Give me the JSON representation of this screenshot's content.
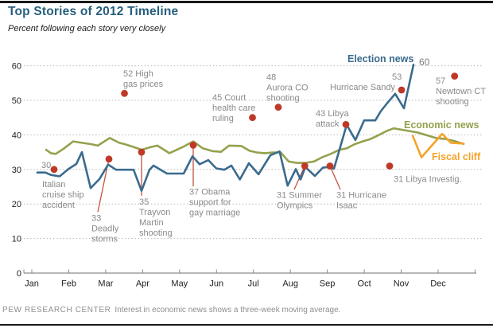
{
  "page": {
    "title": "Top Stories of 2012 Timeline",
    "subtitle": "Percent following each story very closely",
    "footer_brand": "PEW RESEARCH CENTER",
    "footer_note": "Interest in economic news shows a three-week moving average."
  },
  "colors": {
    "election": "#3A6B8E",
    "economic": "#95A14E",
    "fiscal": "#F5A329",
    "event_dot": "#BF3927",
    "connector": "#C4523E",
    "annotation": "#8A8A8A",
    "grid": "#B8B8B8",
    "axis": "#8A8A8A",
    "endpoint": "#7d7d7d"
  },
  "chart_data": {
    "type": "line",
    "title": "Top Stories of 2012 Timeline",
    "ylabel": "Percent following each story very closely",
    "x_unit": "months since Jan 1 2012 (0 = Jan, 11 = Dec)",
    "xlim": [
      0,
      12
    ],
    "ylim": [
      0,
      65
    ],
    "yticks": [
      0,
      10,
      20,
      30,
      40,
      50,
      60
    ],
    "xticklabels": [
      "Jan",
      "Feb",
      "Mar",
      "Apr",
      "May",
      "Jun",
      "Jul",
      "Aug",
      "Sep",
      "Oct",
      "Nov",
      "Dec"
    ],
    "grid": "dotted horizontal",
    "legend_position": "inline labels on lines",
    "series": [
      {
        "id": "election",
        "name": "Election news",
        "color": "#3A6B8E",
        "points": [
          [
            0.365,
            29.1
          ],
          [
            0.58,
            29.1
          ],
          [
            0.731,
            28.4
          ],
          [
            0.967,
            28.0
          ],
          [
            1.203,
            30.1
          ],
          [
            1.418,
            31.6
          ],
          [
            1.569,
            35.0
          ],
          [
            1.805,
            24.6
          ],
          [
            2.041,
            27.2
          ],
          [
            2.278,
            31.4
          ],
          [
            2.493,
            29.9
          ],
          [
            2.729,
            29.9
          ],
          [
            2.966,
            29.9
          ],
          [
            3.18,
            23.8
          ],
          [
            3.395,
            29.9
          ],
          [
            3.503,
            31.1
          ],
          [
            3.632,
            30.3
          ],
          [
            3.868,
            28.8
          ],
          [
            4.104,
            28.8
          ],
          [
            4.319,
            28.8
          ],
          [
            4.556,
            33.8
          ],
          [
            4.749,
            31.5
          ],
          [
            4.985,
            32.7
          ],
          [
            5.2,
            30.3
          ],
          [
            5.415,
            29.9
          ],
          [
            5.608,
            31.1
          ],
          [
            5.838,
            27.1
          ],
          [
            6.08,
            31.8
          ],
          [
            6.34,
            28.6
          ],
          [
            6.66,
            34.1
          ],
          [
            6.91,
            35.2
          ],
          [
            7.128,
            25.3
          ],
          [
            7.349,
            30.1
          ],
          [
            7.478,
            27.1
          ],
          [
            7.607,
            30.7
          ],
          [
            7.864,
            28.1
          ],
          [
            8.079,
            30.5
          ],
          [
            8.23,
            30.7
          ],
          [
            8.38,
            30.2
          ],
          [
            8.724,
            42.9
          ],
          [
            8.96,
            38.5
          ],
          [
            9.197,
            44.2
          ],
          [
            9.497,
            44.2
          ],
          [
            9.648,
            46.9
          ],
          [
            9.82,
            49.2
          ],
          [
            10.035,
            51.9
          ],
          [
            10.271,
            47.7
          ],
          [
            10.529,
            60.3
          ]
        ]
      },
      {
        "id": "economic",
        "name": "Economic news",
        "color": "#95A14E",
        "points": [
          [
            0.602,
            35.7
          ],
          [
            0.731,
            34.7
          ],
          [
            0.86,
            34.5
          ],
          [
            1.074,
            36.0
          ],
          [
            1.332,
            38.1
          ],
          [
            1.569,
            37.7
          ],
          [
            1.826,
            37.3
          ],
          [
            1.998,
            36.9
          ],
          [
            2.321,
            39.1
          ],
          [
            2.578,
            37.7
          ],
          [
            2.729,
            37.3
          ],
          [
            2.966,
            36.5
          ],
          [
            3.18,
            35.7
          ],
          [
            3.438,
            36.5
          ],
          [
            3.61,
            36.9
          ],
          [
            3.932,
            34.7
          ],
          [
            4.298,
            36.5
          ],
          [
            4.577,
            38.1
          ],
          [
            4.835,
            36.1
          ],
          [
            5.093,
            35.3
          ],
          [
            5.329,
            35.1
          ],
          [
            5.544,
            36.9
          ],
          [
            5.87,
            36.8
          ],
          [
            6.1,
            35.4
          ],
          [
            6.296,
            34.9
          ],
          [
            6.511,
            34.7
          ],
          [
            6.726,
            34.9
          ],
          [
            6.941,
            34.9
          ],
          [
            7.156,
            32.3
          ],
          [
            7.37,
            31.9
          ],
          [
            7.607,
            31.9
          ],
          [
            7.843,
            32.3
          ],
          [
            8.058,
            33.5
          ],
          [
            8.294,
            34.5
          ],
          [
            8.531,
            35.7
          ],
          [
            8.724,
            36.1
          ],
          [
            8.939,
            37.3
          ],
          [
            9.154,
            38.1
          ],
          [
            9.368,
            38.8
          ],
          [
            9.583,
            39.9
          ],
          [
            9.798,
            41.1
          ],
          [
            9.991,
            41.9
          ],
          [
            10.206,
            41.5
          ],
          [
            10.421,
            41.1
          ],
          [
            10.636,
            40.7
          ],
          [
            10.916,
            39.8
          ],
          [
            11.131,
            39.1
          ],
          [
            11.389,
            38.8
          ],
          [
            11.604,
            38.3
          ],
          [
            11.883,
            37.4
          ]
        ]
      },
      {
        "id": "fiscal",
        "name": "Fiscal cliff",
        "color": "#F5A329",
        "points": [
          [
            10.507,
            39.8
          ],
          [
            10.744,
            33.5
          ],
          [
            11.302,
            40.3
          ],
          [
            11.539,
            37.7
          ],
          [
            11.883,
            37.5
          ]
        ]
      }
    ],
    "series_labels": {
      "election": {
        "text": "Election news",
        "m": 8.745,
        "v": 63.6
      },
      "election_endpoint": {
        "text": "60",
        "m": 10.679,
        "v": 62.7
      },
      "economic": {
        "text": "Economic news",
        "m": 10.271,
        "v": 44.5
      },
      "fiscal": {
        "text": "Fiscal cliff",
        "m": 11.023,
        "v": 35.3
      }
    },
    "events": [
      {
        "story": "Italian cruise ship accident",
        "value": 30,
        "dot": {
          "m": 0.817,
          "v": 30
        },
        "labels": [
          {
            "m": 0.473,
            "v": 32.7,
            "lines": [
              "30"
            ]
          },
          {
            "m": 0.494,
            "v": 27.2,
            "lines": [
              "Italian",
              "cruise ship",
              "accident"
            ]
          }
        ]
      },
      {
        "story": "Deadly storms",
        "value": 33,
        "dot": {
          "m": 2.299,
          "v": 33
        },
        "labels": [
          {
            "m": 1.826,
            "v": 17.3,
            "lines": [
              "33",
              "Deadly",
              "storms"
            ]
          }
        ],
        "connector": {
          "m": 1.998,
          "v": 17.7
        }
      },
      {
        "story": "High gas prices",
        "value": 52,
        "dot": {
          "m": 2.718,
          "v": 52
        },
        "labels": [
          {
            "m": 2.686,
            "v": 59.2,
            "lines": [
              "52 High",
              "gas prices"
            ]
          }
        ]
      },
      {
        "story": "Trayvon Martin shooting",
        "value": 35,
        "dot": {
          "m": 3.18,
          "v": 35
        },
        "labels": [
          {
            "m": 3.116,
            "v": 22.1,
            "lines": [
              "35",
              "Trayvon",
              "Martin",
              "shooting"
            ]
          }
        ],
        "connector": {
          "m": 3.18,
          "v": 22.4
        }
      },
      {
        "story": "Obama support for gay marriage",
        "value": 37,
        "dot": {
          "m": 4.577,
          "v": 37
        },
        "labels": [
          {
            "m": 4.47,
            "v": 24.9,
            "lines": [
              "37 Obama",
              "support for",
              "gay marriage"
            ]
          }
        ],
        "connector": {
          "m": 4.577,
          "v": 25.1
        }
      },
      {
        "story": "Court health care ruling",
        "value": 45,
        "dot": {
          "m": 6.178,
          "v": 45
        },
        "labels": [
          {
            "m": 5.093,
            "v": 52.3,
            "lines": [
              "45 Court",
              "health care",
              "ruling"
            ]
          }
        ]
      },
      {
        "story": "Aurora CO shooting",
        "value": 48,
        "dot": {
          "m": 6.876,
          "v": 48
        },
        "labels": [
          {
            "m": 6.554,
            "v": 58.1,
            "lines": [
              "48",
              "Aurora CO",
              "shooting"
            ]
          }
        ]
      },
      {
        "story": "Summer Olympics",
        "value": 31,
        "dot": {
          "m": 7.592,
          "v": 31
        },
        "labels": [
          {
            "m": 6.833,
            "v": 24.0,
            "lines": [
              "31 Summer",
              "Olympics"
            ]
          }
        ],
        "connector": {
          "m": 7.306,
          "v": 24.2
        }
      },
      {
        "story": "Hurricane Isaac",
        "value": 31,
        "dot": {
          "m": 8.273,
          "v": 31
        },
        "labels": [
          {
            "m": 8.445,
            "v": 24.0,
            "lines": [
              "31 Hurricane",
              "Isaac"
            ]
          }
        ],
        "connector": {
          "m": 8.552,
          "v": 24.2
        }
      },
      {
        "story": "Libya attack",
        "value": 43,
        "dot": {
          "m": 8.703,
          "v": 43
        },
        "labels": [
          {
            "m": 7.886,
            "v": 47.7,
            "lines": [
              "43 Libya",
              "attack"
            ]
          }
        ]
      },
      {
        "story": "Hurricane Sandy",
        "value": 53,
        "dot": {
          "m": 10.206,
          "v": 53
        },
        "labels": [
          {
            "m": 9.948,
            "v": 58.3,
            "lines": [
              "53"
            ]
          },
          {
            "m": 8.273,
            "v": 55.3,
            "lines": [
              "Hurricane Sandy"
            ]
          }
        ]
      },
      {
        "story": "Newtown CT shooting",
        "value": 57,
        "dot": {
          "m": 11.64,
          "v": 57
        },
        "labels": [
          {
            "m": 11.131,
            "v": 57.1,
            "lines": [
              "57",
              "Newtown CT",
              "shooting"
            ]
          }
        ]
      },
      {
        "story": "Libya investigation",
        "value": 31,
        "dot": {
          "m": 9.884,
          "v": 31
        },
        "labels": [
          {
            "m": 9.991,
            "v": 28.6,
            "lines": [
              "31 Libya Investig."
            ]
          }
        ]
      }
    ]
  }
}
